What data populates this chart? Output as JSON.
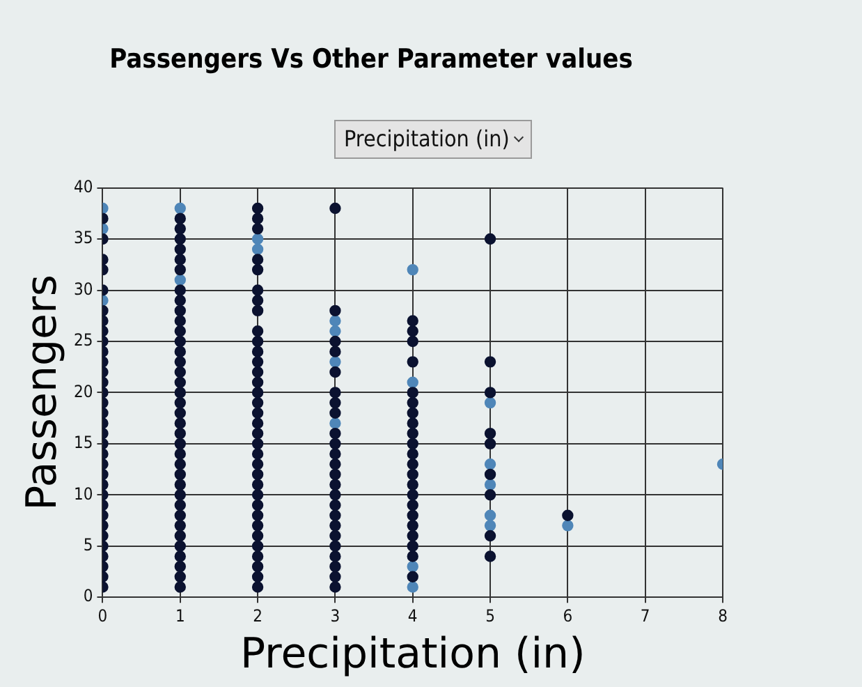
{
  "chart_data": {
    "type": "scatter",
    "title": "Passengers Vs Other Parameter values",
    "xlabel": "Precipitation (in)",
    "ylabel": "Passengers",
    "xlim": [
      0,
      8
    ],
    "xticks": [
      0,
      1,
      2,
      3,
      4,
      5,
      6,
      7,
      8
    ],
    "ylim": [
      0,
      40
    ],
    "yticks": [
      0,
      5,
      10,
      15,
      20,
      25,
      30,
      35,
      40
    ],
    "grid": true,
    "legend": false,
    "marker": "circle",
    "series": [
      {
        "color": "#0b1230",
        "x": [
          0,
          0,
          0,
          0,
          0,
          0,
          0,
          0,
          0,
          0,
          0,
          0,
          0,
          0,
          0,
          0,
          0,
          0,
          0,
          0,
          0,
          0,
          0,
          0,
          0,
          0,
          0,
          0,
          0,
          0,
          0,
          0,
          0,
          1,
          1,
          1,
          1,
          1,
          1,
          1,
          1,
          1,
          1,
          1,
          1,
          1,
          1,
          1,
          1,
          1,
          1,
          1,
          1,
          1,
          1,
          1,
          1,
          1,
          1,
          1,
          1,
          1,
          1,
          1,
          1,
          1,
          1,
          1,
          1,
          2,
          2,
          2,
          2,
          2,
          2,
          2,
          2,
          2,
          2,
          2,
          2,
          2,
          2,
          2,
          2,
          2,
          2,
          2,
          2,
          2,
          2,
          2,
          2,
          2,
          2,
          2,
          2,
          2,
          2,
          2,
          2,
          2,
          2,
          3,
          3,
          3,
          3,
          3,
          3,
          3,
          3,
          3,
          3,
          3,
          3,
          3,
          3,
          3,
          3,
          3,
          3,
          3,
          3,
          3,
          3,
          3,
          3,
          4,
          4,
          4,
          4,
          4,
          4,
          4,
          4,
          4,
          4,
          4,
          4,
          4,
          4,
          4,
          4,
          4,
          4,
          4,
          4,
          4,
          4,
          5,
          5,
          5,
          5,
          5,
          5,
          5,
          5,
          5,
          6
        ],
        "values": [
          1,
          2,
          3,
          4,
          5,
          6,
          7,
          8,
          9,
          10,
          11,
          12,
          13,
          14,
          15,
          16,
          17,
          18,
          19,
          20,
          21,
          22,
          23,
          24,
          25,
          26,
          27,
          28,
          30,
          32,
          33,
          35,
          37,
          1,
          2,
          3,
          4,
          5,
          6,
          7,
          8,
          9,
          10,
          11,
          12,
          13,
          14,
          15,
          16,
          17,
          18,
          19,
          20,
          21,
          22,
          23,
          24,
          25,
          26,
          27,
          28,
          29,
          30,
          32,
          33,
          34,
          35,
          36,
          37,
          1,
          2,
          3,
          4,
          5,
          6,
          7,
          8,
          9,
          10,
          11,
          12,
          13,
          14,
          15,
          16,
          17,
          18,
          19,
          20,
          21,
          22,
          23,
          24,
          25,
          26,
          28,
          29,
          30,
          32,
          33,
          36,
          37,
          38,
          1,
          2,
          3,
          4,
          5,
          6,
          7,
          8,
          9,
          10,
          11,
          12,
          13,
          14,
          15,
          16,
          18,
          19,
          20,
          22,
          24,
          25,
          28,
          38,
          2,
          4,
          5,
          6,
          7,
          8,
          9,
          10,
          11,
          12,
          13,
          14,
          15,
          16,
          17,
          18,
          19,
          20,
          23,
          25,
          26,
          27,
          35,
          23,
          20,
          16,
          15,
          12,
          10,
          6,
          4,
          8
        ]
      },
      {
        "color": "#4f86b8",
        "x": [
          0,
          0,
          0,
          1,
          1,
          2,
          2,
          3,
          3,
          3,
          3,
          4,
          4,
          4,
          4,
          5,
          5,
          5,
          5,
          5,
          6,
          8
        ],
        "values": [
          29,
          36,
          38,
          31,
          38,
          34,
          35,
          17,
          23,
          26,
          27,
          1,
          3,
          21,
          32,
          19,
          13,
          11,
          8,
          7,
          7,
          13
        ]
      }
    ]
  }
}
